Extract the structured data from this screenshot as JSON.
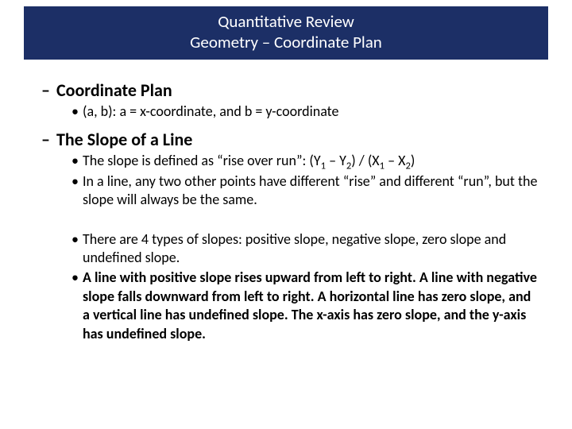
{
  "colors": {
    "title_bg": "#1c2f66",
    "title_text": "#ffffff",
    "body_text": "#000000",
    "page_bg": "#ffffff"
  },
  "typography": {
    "title_fontsize_pt": 21,
    "heading_fontsize_pt": 22,
    "body_fontsize_pt": 18,
    "font_family": "Calibri"
  },
  "title": {
    "line1": "Quantitative Review",
    "line2": "Geometry – Coordinate Plan"
  },
  "sections": [
    {
      "heading": "Coordinate Plan",
      "bullets": [
        {
          "html": "(a, b): a = x-coordinate, and b = y-coordinate",
          "bold": false
        }
      ]
    },
    {
      "heading": "The Slope of a Line",
      "bullets": [
        {
          "html": "The slope is defined as “rise over run”: (Y<sub>1</sub> – Y<sub>2</sub>) / (X<sub>1</sub> – X<sub>2</sub>)",
          "bold": false
        },
        {
          "html": "In a line, any two other points have different “rise” and different “run”, but the slope will always be the same.",
          "bold": false
        }
      ],
      "bullets2": [
        {
          "html": "There are 4 types of slopes: positive slope, negative slope, zero slope and undefined slope.",
          "bold": false
        },
        {
          "html": "A line with positive slope rises upward from left to right. A line with negative slope falls downward from left to right. A horizontal line has zero slope, and a vertical line has undefined slope. The x-axis has zero slope, and the y-axis has undefined slope.",
          "bold": true
        }
      ]
    }
  ]
}
